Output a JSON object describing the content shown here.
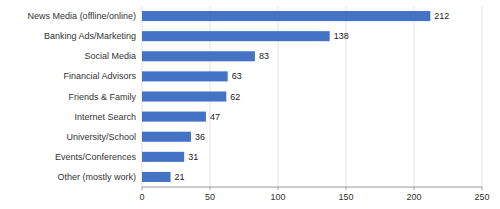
{
  "chart_data": {
    "type": "bar",
    "orientation": "horizontal",
    "categories": [
      "Other (mostly work)",
      "Events/Conferences",
      "University/School",
      "Internet Search",
      "Friends & Family",
      "Financial Advisors",
      "Social Media",
      "Banking Ads/Marketing",
      "News Media (offline/online)"
    ],
    "values": [
      21,
      31,
      36,
      47,
      62,
      63,
      83,
      138,
      212
    ],
    "color": "#4472c4",
    "xlim": [
      0,
      250
    ],
    "xticks": [
      0,
      50,
      100,
      150,
      200,
      250
    ],
    "grid": true,
    "data_labels": true
  }
}
